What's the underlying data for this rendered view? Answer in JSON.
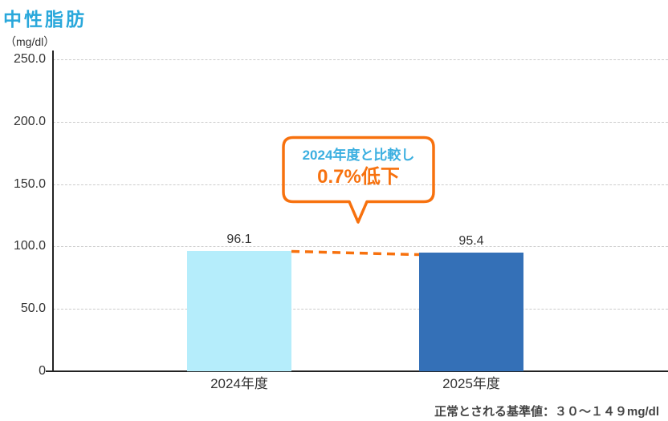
{
  "chart_data": {
    "type": "bar",
    "title": "中性脂肪",
    "unit_label": "（mg/dl）",
    "categories": [
      "2024年度",
      "2025年度"
    ],
    "values": [
      96.1,
      95.4
    ],
    "value_labels": [
      "96.1",
      "95.4"
    ],
    "bar_colors": [
      "#B5EDFB",
      "#3470B7"
    ],
    "ylim": [
      0,
      250
    ],
    "yticks": [
      0,
      50,
      100,
      150,
      200,
      250
    ],
    "ytick_labels": [
      "0",
      "50.0",
      "100.0",
      "150.0",
      "200.0",
      "250.0"
    ],
    "grid": "horizontal-dashed",
    "legend": "none",
    "annotation": {
      "line1": "2024年度と比較し",
      "line2": "0.7%低下",
      "connector": "orange dashed line from top of 2024 bar to top of 2025 bar"
    },
    "note": "正常とされる基準値：３０〜１４９mg/dl",
    "colors": {
      "title": "#2AA8DB",
      "annotation_accent": "#F7710E",
      "annotation_text": "#3BAFE0",
      "axis": "#222222",
      "gridline": "#CCCCCC",
      "text": "#333333"
    }
  }
}
